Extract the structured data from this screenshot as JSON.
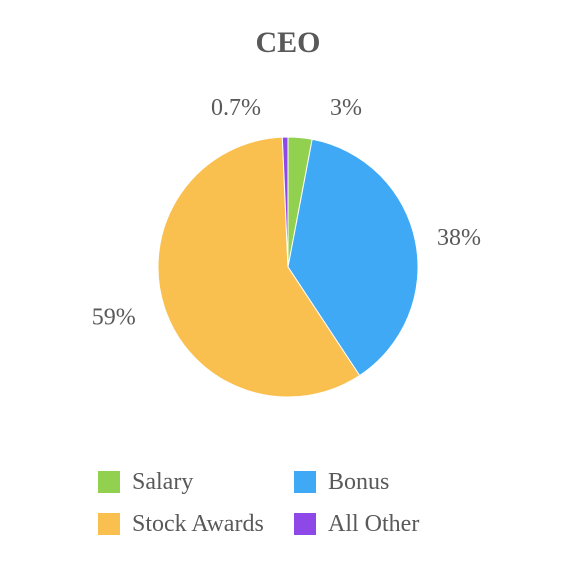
{
  "chart_data": {
    "type": "pie",
    "title": "CEO",
    "slices": [
      {
        "name": "Salary",
        "value": 3,
        "label": "3%",
        "color": "#92d050"
      },
      {
        "name": "Bonus",
        "value": 38,
        "label": "38%",
        "color": "#3fa9f5"
      },
      {
        "name": "Stock Awards",
        "value": 59,
        "label": "59%",
        "color": "#f9c04f"
      },
      {
        "name": "All Other",
        "value": 0.7,
        "label": "0.7%",
        "color": "#8e48e8"
      }
    ],
    "slice_order": [
      "Salary",
      "Bonus",
      "Stock Awards",
      "All Other"
    ],
    "start": "12 o'clock",
    "direction": "clockwise",
    "legend": {
      "placement": "bottom",
      "items": [
        {
          "label": "Salary",
          "color": "#92d050"
        },
        {
          "label": "Bonus",
          "color": "#3fa9f5"
        },
        {
          "label": "Stock Awards",
          "color": "#f9c04f"
        },
        {
          "label": "All Other",
          "color": "#8e48e8"
        }
      ]
    }
  }
}
